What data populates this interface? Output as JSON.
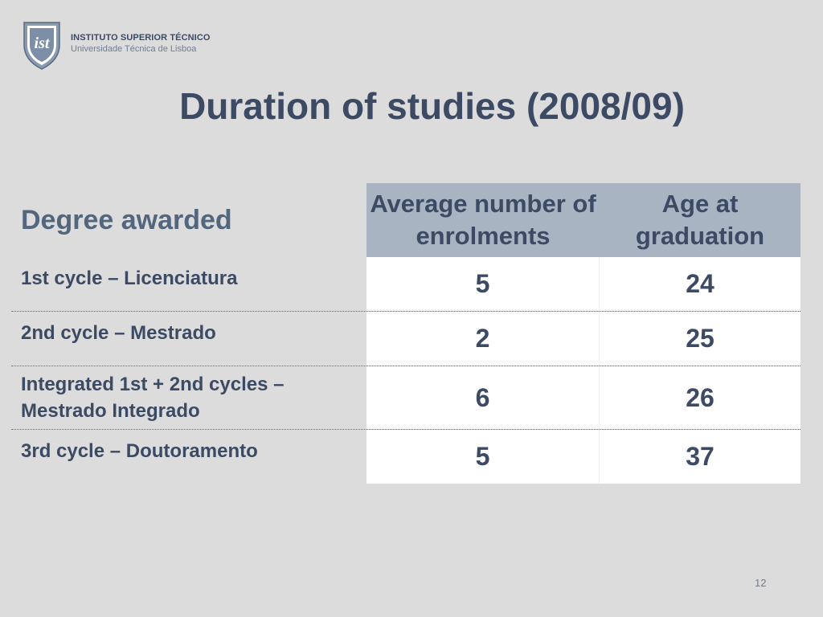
{
  "institution": {
    "name": "INSTITUTO SUPERIOR TÉCNICO",
    "subtitle": "Universidade Técnica de Lisboa"
  },
  "title": "Duration of studies (2008/09)",
  "table": {
    "row_header": "Degree awarded",
    "columns": [
      "Average number of enrolments",
      "Age at graduation"
    ],
    "rows": [
      {
        "label": "1st cycle – Licenciatura",
        "enrolments": "5",
        "age": "24"
      },
      {
        "label": "2nd cycle – Mestrado",
        "enrolments": "2",
        "age": "25"
      },
      {
        "label": "Integrated 1st + 2nd cycles – Mestrado Integrado",
        "enrolments": "6",
        "age": "26"
      },
      {
        "label": "3rd cycle – Doutoramento",
        "enrolments": "5",
        "age": "37"
      }
    ]
  },
  "page_number": "12",
  "colors": {
    "background": "#dcdcdc",
    "header_fill": "#a8b4c2",
    "title_text": "#3c4a64"
  },
  "logo_icon": "ist-shield-icon"
}
